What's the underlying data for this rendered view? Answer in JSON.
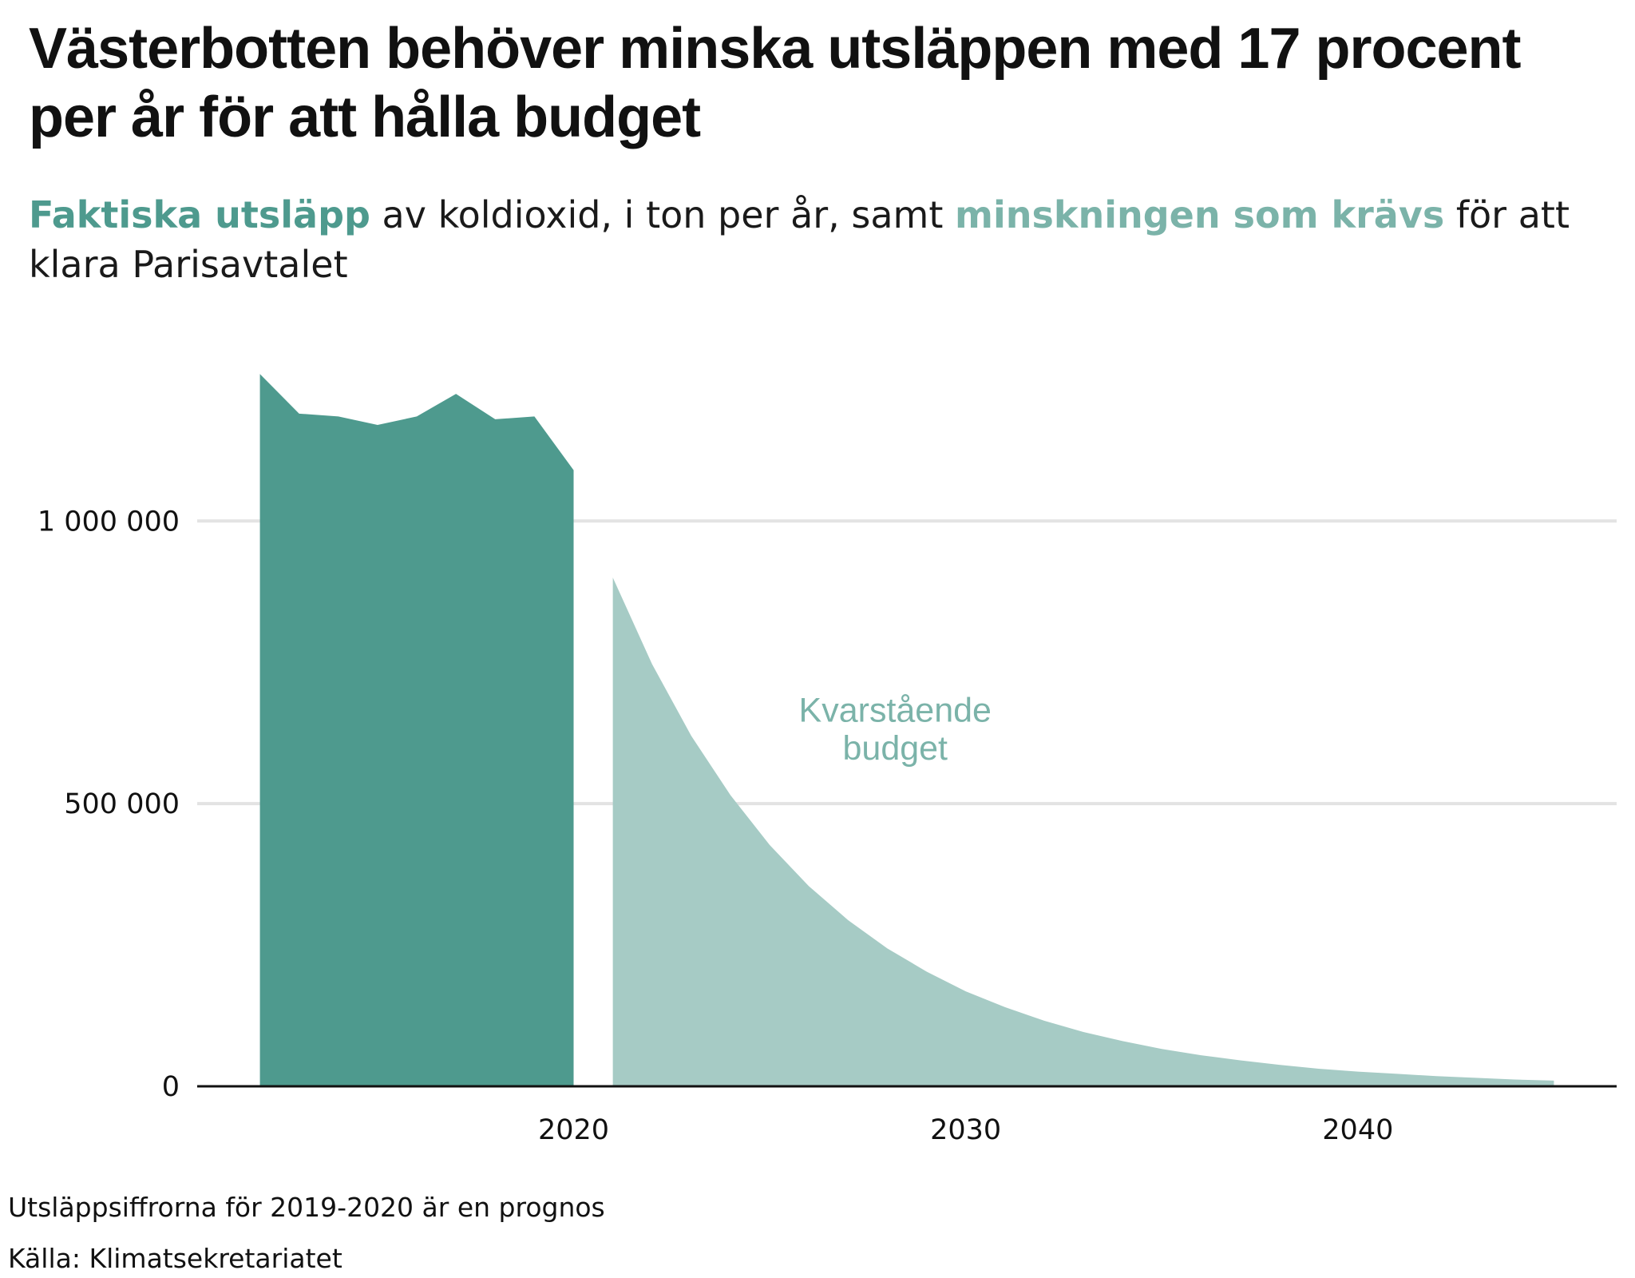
{
  "title": "Västerbotten behöver minska utsläppen med 17 procent per år för att hålla budget",
  "subtitle": {
    "part1_highlight": "Faktiska utsläpp",
    "part2": " av koldioxid, i ton per år, samt ",
    "part3_highlight": "minskningen som krävs",
    "part4": " för att klara Parisavtalet"
  },
  "colors": {
    "actual": "#4e9a8e",
    "budget": "#a6cbc5",
    "budget_label": "#7bb3a9",
    "grid": "#e3e3e3",
    "axis": "#111111"
  },
  "chart_data": {
    "type": "area",
    "title": "Västerbotten behöver minska utsläppen med 17 procent per år för att hålla budget",
    "xlabel": "",
    "ylabel": "",
    "xlim": [
      2010.4,
      2046.6
    ],
    "ylim": [
      0,
      1300000
    ],
    "x_ticks": [
      2020,
      2030,
      2040
    ],
    "y_ticks": [
      0,
      500000,
      1000000
    ],
    "y_tick_labels": [
      "0",
      "500 000",
      "1 000 000"
    ],
    "grid": "horizontal",
    "series": [
      {
        "name": "Faktiska utsläpp",
        "x": [
          2012,
          2013,
          2014,
          2015,
          2016,
          2017,
          2018,
          2019,
          2020
        ],
        "y": [
          1260000,
          1190000,
          1185000,
          1170000,
          1185000,
          1225000,
          1180000,
          1185000,
          1090000
        ]
      },
      {
        "name": "minskningen som krävs",
        "x": [
          2021,
          2022,
          2023,
          2024,
          2025,
          2026,
          2027,
          2028,
          2029,
          2030,
          2031,
          2032,
          2033,
          2034,
          2035,
          2036,
          2037,
          2038,
          2039,
          2040,
          2041,
          2042,
          2043,
          2044,
          2045
        ],
        "y": [
          900000,
          747000,
          620000,
          515000,
          427000,
          354000,
          294000,
          244000,
          203000,
          168000,
          140000,
          116000,
          96000,
          80000,
          66000,
          55000,
          46000,
          38000,
          31000,
          26000,
          22000,
          18000,
          15000,
          12000,
          10000
        ]
      }
    ],
    "annotations": [
      {
        "text": "Kvarstående",
        "x": 2028.2,
        "y": 645000
      },
      {
        "text": "budget",
        "x": 2028.2,
        "y": 578000
      }
    ]
  },
  "footnotes": {
    "note": "Utsläppsiffrorna för 2019-2020 är en prognos",
    "source": "Källa: Klimatsekretariatet"
  }
}
